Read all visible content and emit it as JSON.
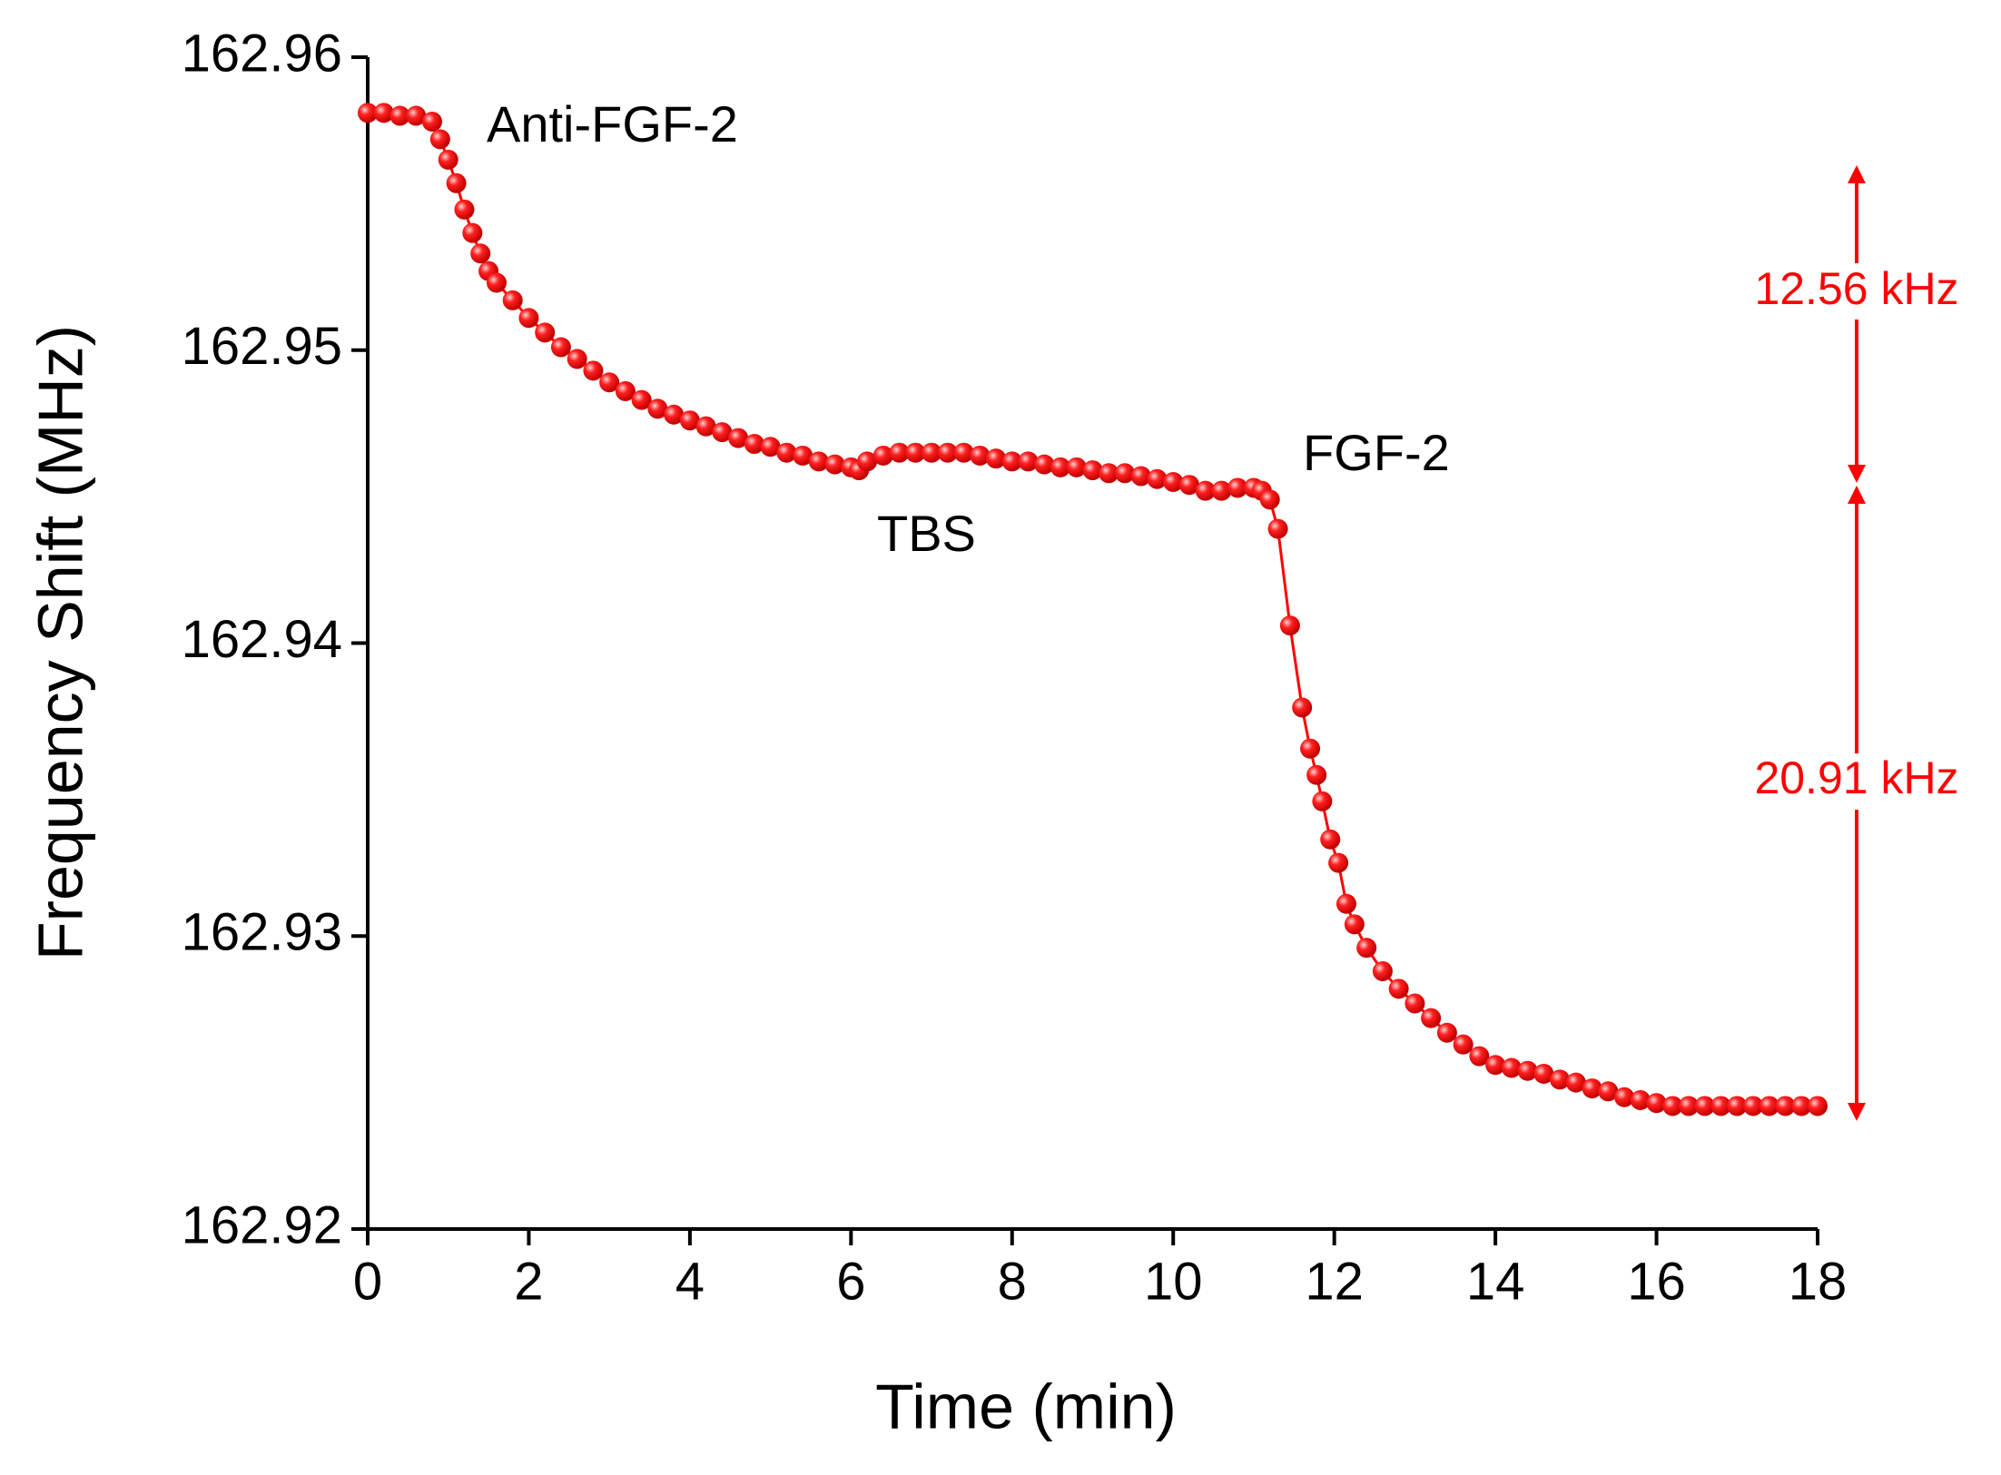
{
  "chart_data": {
    "type": "line",
    "xlabel": "Time (min)",
    "ylabel": "Frequency Shift (MHz)",
    "annotations": [
      "Anti-FGF-2",
      "TBS",
      "FGF-2",
      "12.56 kHz",
      "20.91 kHz"
    ],
    "xlim": [
      0,
      18
    ],
    "xticks": [
      0,
      2,
      4,
      6,
      8,
      10,
      12,
      14,
      16,
      18
    ],
    "ylim": [
      162.92,
      162.96
    ],
    "yticks": [
      162.92,
      162.93,
      162.94,
      162.95,
      162.96
    ],
    "markers": true,
    "x": [
      0,
      0.2,
      0.4,
      0.6,
      0.8,
      0.9,
      1.0,
      1.1,
      1.2,
      1.3,
      1.4,
      1.5,
      1.6,
      1.8,
      2.0,
      2.2,
      2.4,
      2.6,
      2.8,
      3.0,
      3.2,
      3.4,
      3.6,
      3.8,
      4.0,
      4.2,
      4.4,
      4.6,
      4.8,
      5.0,
      5.2,
      5.4,
      5.6,
      5.8,
      6.0,
      6.1,
      6.2,
      6.4,
      6.6,
      6.8,
      7.0,
      7.2,
      7.4,
      7.6,
      7.8,
      8.0,
      8.2,
      8.4,
      8.6,
      8.8,
      9.0,
      9.2,
      9.4,
      9.6,
      9.8,
      10.0,
      10.2,
      10.4,
      10.6,
      10.8,
      11.0,
      11.1,
      11.2,
      11.3,
      11.45,
      11.6,
      11.7,
      11.78,
      11.85,
      11.95,
      12.05,
      12.15,
      12.25,
      12.4,
      12.6,
      12.8,
      13.0,
      13.2,
      13.4,
      13.6,
      13.8,
      14.0,
      14.2,
      14.4,
      14.6,
      14.8,
      15.0,
      15.2,
      15.4,
      15.6,
      15.8,
      16.0,
      16.2,
      16.4,
      16.6,
      16.8,
      17.0,
      17.2,
      17.4,
      17.6,
      17.8,
      18.0
    ],
    "series": [
      {
        "color": "#ff0000",
        "values": [
          162.9581,
          162.9581,
          162.958,
          162.958,
          162.9578,
          162.9572,
          162.9565,
          162.9557,
          162.9548,
          162.954,
          162.9533,
          162.9527,
          162.9523,
          162.9517,
          162.9511,
          162.9506,
          162.9501,
          162.9497,
          162.9493,
          162.9489,
          162.9486,
          162.9483,
          162.948,
          162.9478,
          162.9476,
          162.9474,
          162.9472,
          162.947,
          162.9468,
          162.9467,
          162.9465,
          162.9464,
          162.9462,
          162.9461,
          162.946,
          162.9459,
          162.9462,
          162.9464,
          162.9465,
          162.9465,
          162.9465,
          162.9465,
          162.9465,
          162.9464,
          162.9463,
          162.9462,
          162.9462,
          162.9461,
          162.946,
          162.946,
          162.9459,
          162.9458,
          162.9458,
          162.9457,
          162.9456,
          162.9455,
          162.9454,
          162.9452,
          162.9452,
          162.9453,
          162.9453,
          162.9452,
          162.9449,
          162.9439,
          162.9406,
          162.9378,
          162.9364,
          162.9355,
          162.9346,
          162.9333,
          162.9325,
          162.9311,
          162.9304,
          162.9296,
          162.9288,
          162.9282,
          162.9277,
          162.9272,
          162.9267,
          162.9263,
          162.9259,
          162.9256,
          162.9255,
          162.9254,
          162.9253,
          162.9251,
          162.925,
          162.9248,
          162.9247,
          162.9245,
          162.9244,
          162.9243,
          162.9242,
          162.9242,
          162.9242,
          162.9242,
          162.9242,
          162.9242,
          162.9242,
          162.9242,
          162.9242,
          162.9242
        ]
      }
    ]
  }
}
